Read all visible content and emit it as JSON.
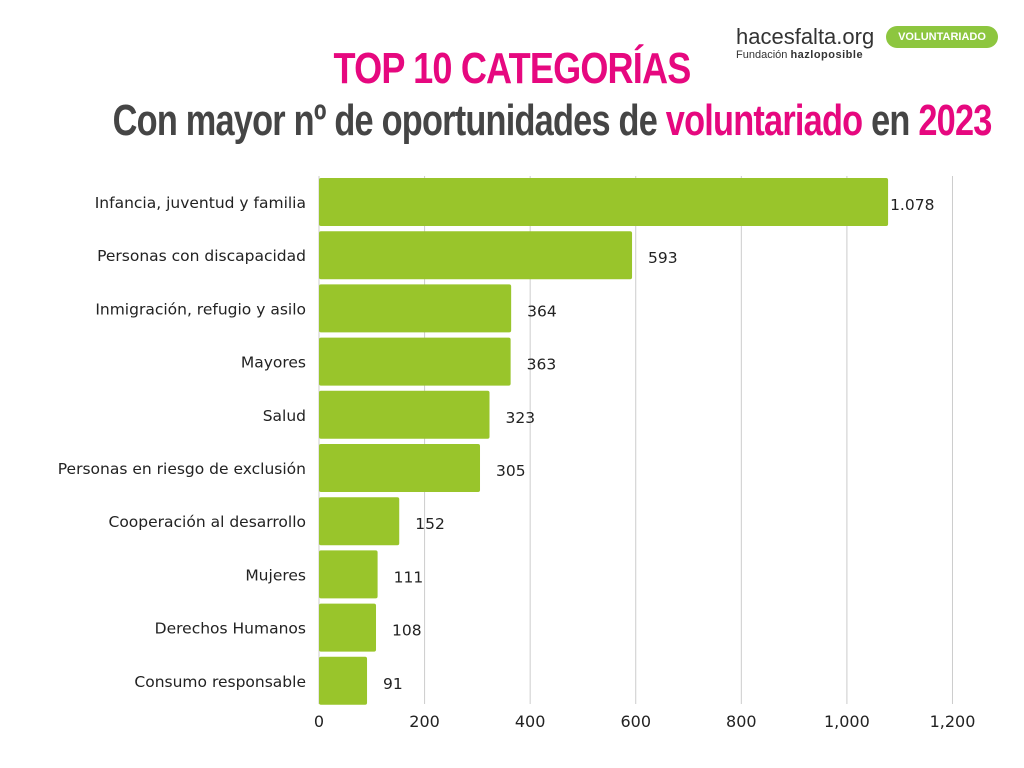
{
  "header": {
    "title_line1": "TOP 10 CATEGORÍAS",
    "title_line2_a": "Con mayor nº de oportunidades de ",
    "title_line2_b": "voluntariado",
    "title_line2_c": " en ",
    "title_line2_d": "2023"
  },
  "logo": {
    "main": "hacesfalta.org",
    "sub_prefix": "Fundación ",
    "sub_brand": "hazloposible",
    "badge": "VOLUNTARIADO"
  },
  "colors": {
    "bar": "#99c52b",
    "accent": "#e6087f",
    "title": "#454545",
    "grid": "#cccccc"
  },
  "chart_data": {
    "type": "bar",
    "orientation": "horizontal",
    "categories": [
      "Infancia, juventud y familia",
      "Personas con discapacidad",
      "Inmigración, refugio y asilo",
      "Mayores",
      "Salud",
      "Personas en riesgo de exclusión",
      "Cooperación al desarrollo",
      "Mujeres",
      "Derechos Humanos",
      "Consumo responsable"
    ],
    "values": [
      1078,
      593,
      364,
      363,
      323,
      305,
      152,
      111,
      108,
      91
    ],
    "value_labels": [
      "1.078",
      "593",
      "364",
      "363",
      "323",
      "305",
      "152",
      "111",
      "108",
      "91"
    ],
    "x_ticks": [
      0,
      200,
      400,
      600,
      800,
      1000,
      1200
    ],
    "x_tick_labels": [
      "0",
      "200",
      "400",
      "600",
      "800",
      "1,000",
      "1,200"
    ],
    "xlim": [
      0,
      1200
    ],
    "grid": true,
    "legend": "none"
  }
}
